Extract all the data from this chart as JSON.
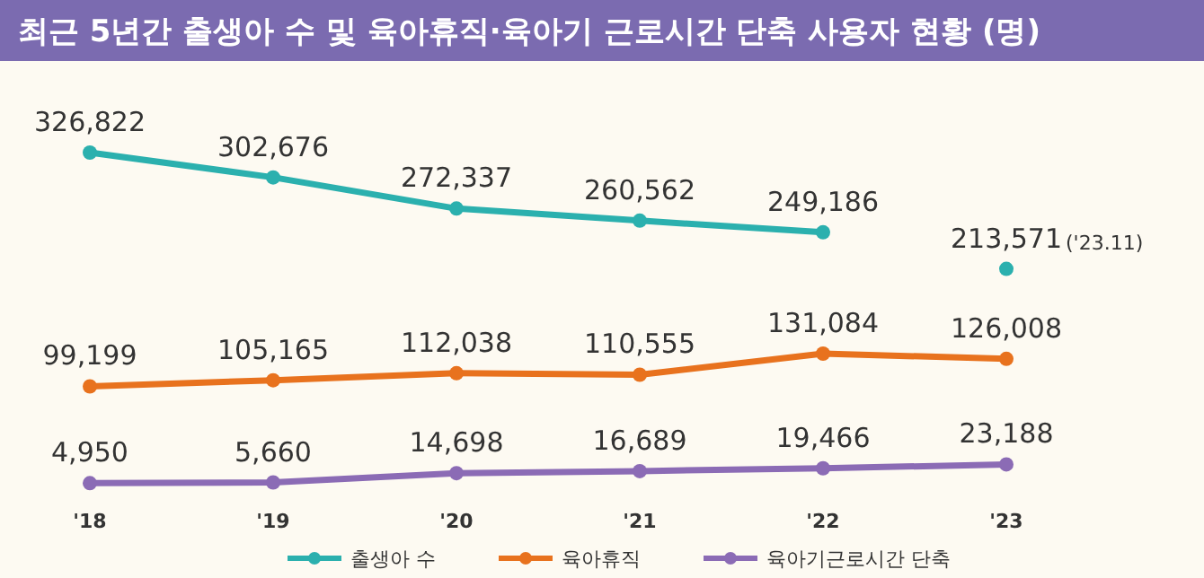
{
  "chart_data": {
    "type": "line",
    "title": "최근 5년간 출생아 수 및 육아휴직·육아기 근로시간 단축 사용자 현황 (명)",
    "categories": [
      "'18",
      "'19",
      "'20",
      "'21",
      "'22",
      "'23"
    ],
    "series": [
      {
        "name": "출생아 수",
        "color": "#2bb0ae",
        "values": [
          326822,
          302676,
          272337,
          260562,
          249186,
          null
        ],
        "value_labels": [
          "326,822",
          "302,676",
          "272,337",
          "260,562",
          "249,186",
          null
        ]
      },
      {
        "type": "scatter",
        "color": "#2bb0ae",
        "values": [
          null,
          null,
          null,
          null,
          null,
          213571
        ],
        "value_labels": [
          null,
          null,
          null,
          null,
          null,
          "213,571"
        ]
      },
      {
        "name": "육아휴직",
        "color": "#e8721e",
        "values": [
          99199,
          105165,
          112038,
          110555,
          131084,
          126008
        ],
        "value_labels": [
          "99,199",
          "105,165",
          "112,038",
          "110,555",
          "131,084",
          "126,008"
        ]
      },
      {
        "name": "육아기근로시간 단축",
        "color": "#8b6bb5",
        "values": [
          4950,
          5660,
          14698,
          16689,
          19466,
          23188
        ],
        "value_labels": [
          "4,950",
          "5,660",
          "14,698",
          "16,689",
          "19,466",
          "23,188"
        ]
      }
    ],
    "annotations": [
      "('23.11)"
    ],
    "tick_labels": "x",
    "marker": "circle",
    "legend": "bottom"
  }
}
